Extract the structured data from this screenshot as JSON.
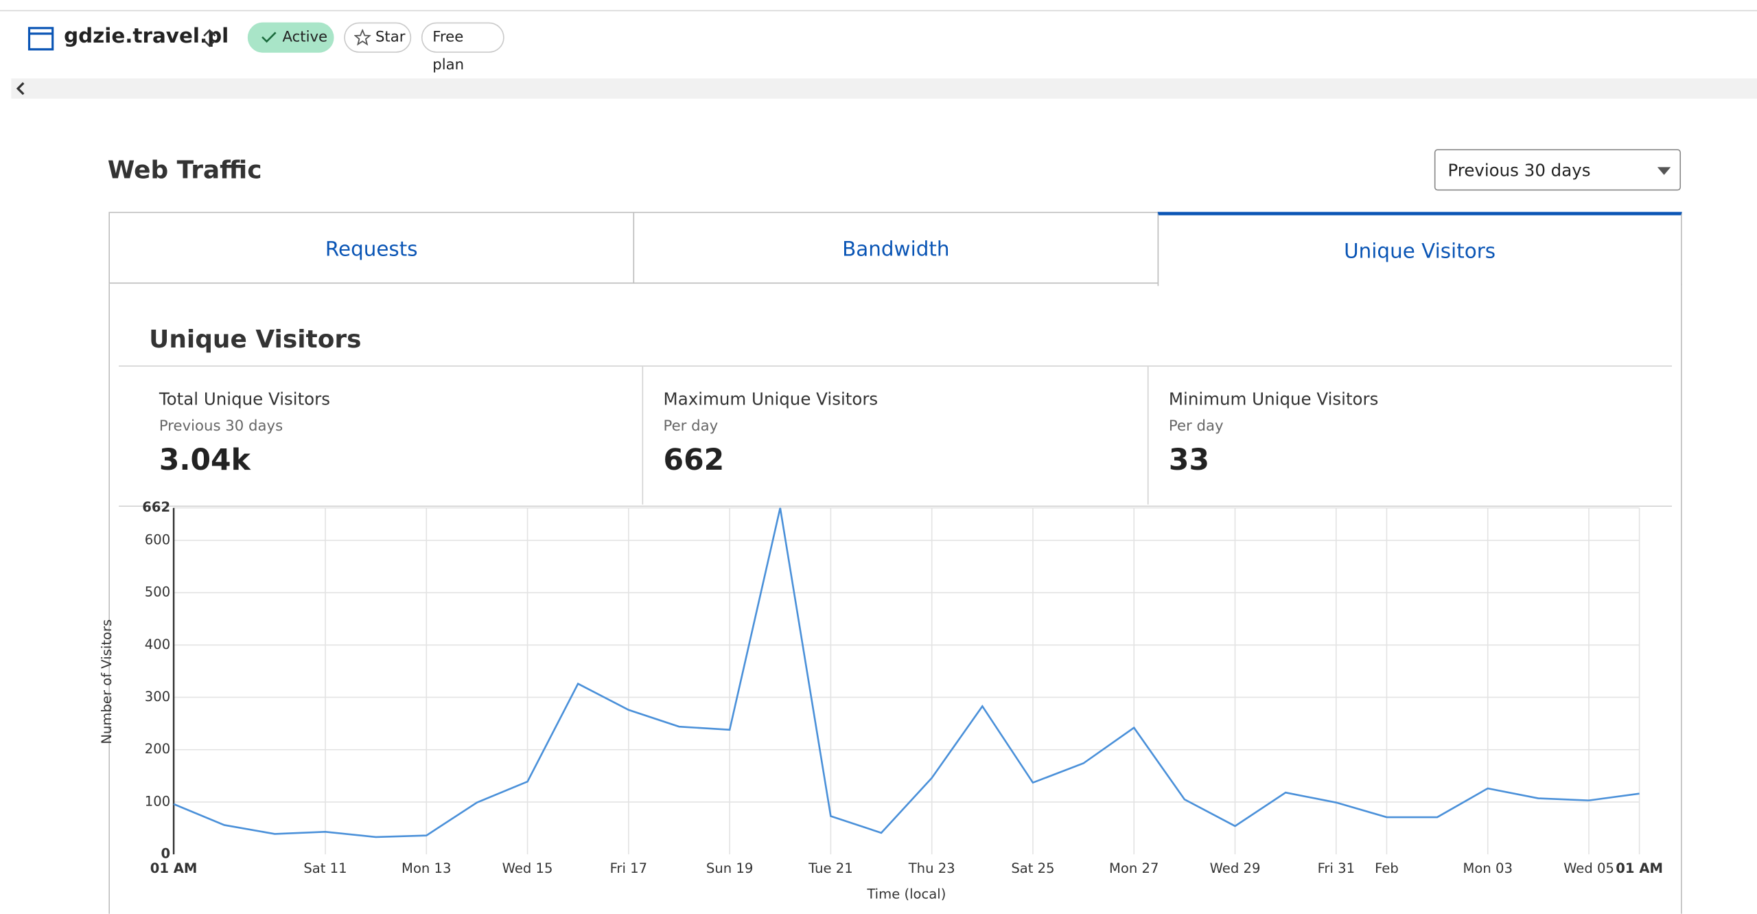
{
  "header": {
    "site": "gdzie.travel.pl",
    "status": "Active",
    "star": "Star",
    "plan": "Free plan"
  },
  "section": {
    "title": "Web Traffic",
    "range": "Previous 30 days"
  },
  "tabs": [
    "Requests",
    "Bandwidth",
    "Unique Visitors"
  ],
  "panel": {
    "title": "Unique Visitors",
    "stats": [
      {
        "label": "Total Unique Visitors",
        "sub": "Previous 30 days",
        "value": "3.04k"
      },
      {
        "label": "Maximum Unique Visitors",
        "sub": "Per day",
        "value": "662"
      },
      {
        "label": "Minimum Unique Visitors",
        "sub": "Per day",
        "value": "33"
      }
    ]
  },
  "chart_data": {
    "type": "line",
    "x_label": "Time (local)",
    "y_label": "Number of Visitors",
    "categories": [
      "01 AM",
      null,
      null,
      "Sat 11",
      null,
      "Mon 13",
      null,
      "Wed 15",
      null,
      "Fri 17",
      null,
      "Sun 19",
      null,
      "Tue 21",
      null,
      "Thu 23",
      null,
      "Sat 25",
      null,
      "Mon 27",
      null,
      "Wed 29",
      null,
      "Fri 31",
      "Feb",
      null,
      "Mon 03",
      null,
      "Wed 05",
      "01 AM"
    ],
    "series": [
      {
        "name": "Unique Visitors",
        "color": "#4a90d9",
        "values": [
          96,
          56,
          39,
          43,
          33,
          36,
          99,
          139,
          326,
          276,
          244,
          238,
          662,
          73,
          41,
          146,
          283,
          137,
          174,
          242,
          105,
          54,
          118,
          99,
          71,
          71,
          126,
          107,
          103,
          116
        ]
      }
    ],
    "ylim": [
      0,
      662
    ],
    "yticks": [
      0,
      100,
      200,
      300,
      400,
      500,
      600,
      662
    ],
    "grid": true
  }
}
